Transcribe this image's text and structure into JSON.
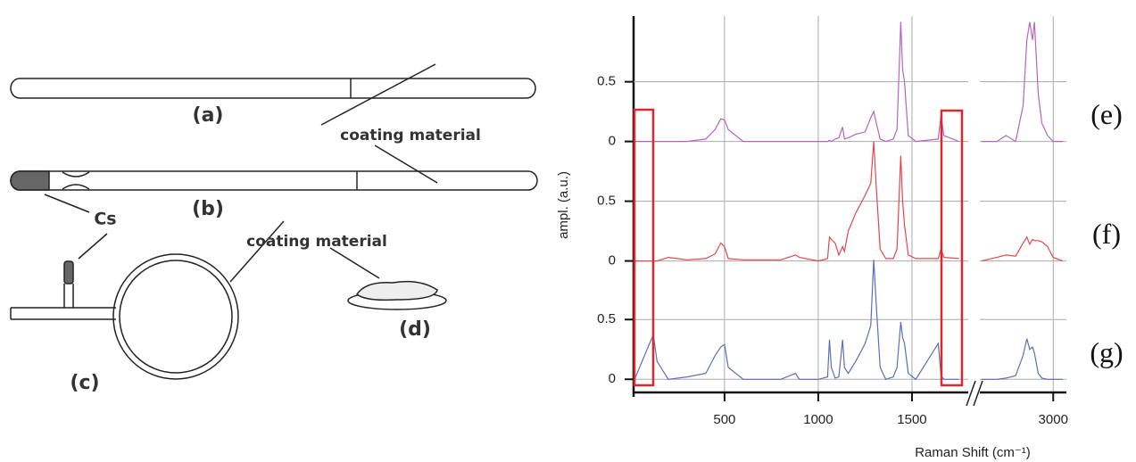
{
  "diagram": {
    "labels": [
      "(a)",
      "coating material",
      "(b)",
      "Cs",
      "coating material",
      "(d)",
      "(c)"
    ]
  },
  "chart_data": {
    "type": "line",
    "xlabel": "Raman Shift (cm⁻¹)",
    "ylabel": "ampl. (a.u.)",
    "x": [
      20,
      100,
      120,
      140,
      200,
      300,
      400,
      450,
      480,
      500,
      520,
      600,
      800,
      880,
      890,
      900,
      1000,
      1050,
      1060,
      1070,
      1090,
      1110,
      1130,
      1140,
      1160,
      1200,
      1250,
      1280,
      1296,
      1310,
      1330,
      1360,
      1400,
      1420,
      1440,
      1450,
      1460,
      1480,
      1520,
      1640,
      1655,
      1670,
      1750,
      2200,
      2620,
      2700,
      2750,
      2800,
      2840,
      2860,
      2875,
      2890,
      2900,
      2920,
      2940,
      2970,
      3000,
      3050
    ],
    "xlim": [
      [
        15,
        1800
      ],
      [
        2610,
        3070
      ]
    ],
    "xticks": [
      500,
      1000,
      1500,
      3000
    ],
    "yticks": [
      0,
      0.5
    ],
    "grid": true,
    "series": [
      {
        "name": "(e)",
        "color": "#b565c0",
        "ylim": [
          -0.1,
          1.05
        ],
        "values": [
          0,
          0,
          0,
          0,
          0,
          0,
          0.02,
          0.1,
          0.19,
          0.18,
          0.1,
          0,
          0,
          0,
          0,
          0,
          0,
          0,
          0.01,
          0,
          0.02,
          0.03,
          0.12,
          0.02,
          0.03,
          0.06,
          0.08,
          0.2,
          0.25,
          0.15,
          0.02,
          0,
          0.02,
          0.1,
          1.0,
          0.6,
          0.5,
          0.05,
          0,
          0.02,
          0.22,
          0.05,
          0,
          null,
          0,
          0,
          0.05,
          0,
          0.3,
          0.85,
          1.0,
          0.85,
          1.0,
          0.4,
          0.15,
          0.05,
          0,
          0
        ]
      },
      {
        "name": "(f)",
        "color": "#e0474c",
        "ylim": [
          -0.1,
          0.9
        ],
        "values": [
          0,
          0,
          0,
          0,
          0.03,
          0.01,
          0.02,
          0.06,
          0.15,
          0.12,
          0.02,
          0.01,
          0.01,
          0.05,
          0.04,
          0.03,
          0,
          0.02,
          0.2,
          0.18,
          0.15,
          0.05,
          0.12,
          0.08,
          0.25,
          0.4,
          0.55,
          0.65,
          1.0,
          0.6,
          0.1,
          0.02,
          0.02,
          0.1,
          0.88,
          0.5,
          0.3,
          0.05,
          0.02,
          0.02,
          0.1,
          0.03,
          0.02,
          null,
          0,
          0.03,
          0.05,
          0.04,
          0.15,
          0.2,
          0.14,
          0.18,
          0.17,
          0.17,
          0.16,
          0.12,
          0.03,
          0
        ]
      },
      {
        "name": "(g)",
        "color": "#5a6fb5",
        "ylim": [
          -0.11,
          0.89
        ],
        "values": [
          0,
          0.3,
          0.37,
          0.15,
          0,
          0.02,
          0.05,
          0.2,
          0.27,
          0.29,
          0.1,
          0,
          0,
          0.05,
          0.02,
          0,
          0,
          0.02,
          0.33,
          0.1,
          0.01,
          0.02,
          0.33,
          0.1,
          0.05,
          0.15,
          0.3,
          0.45,
          1.0,
          0.6,
          0.1,
          0,
          0.02,
          0.1,
          0.48,
          0.35,
          0.3,
          0.05,
          0,
          0.3,
          0.03,
          0,
          0,
          null,
          0,
          0,
          0.01,
          0.03,
          0.2,
          0.34,
          0.25,
          0.27,
          0.22,
          0.05,
          0.01,
          0,
          0,
          0
        ]
      }
    ]
  }
}
